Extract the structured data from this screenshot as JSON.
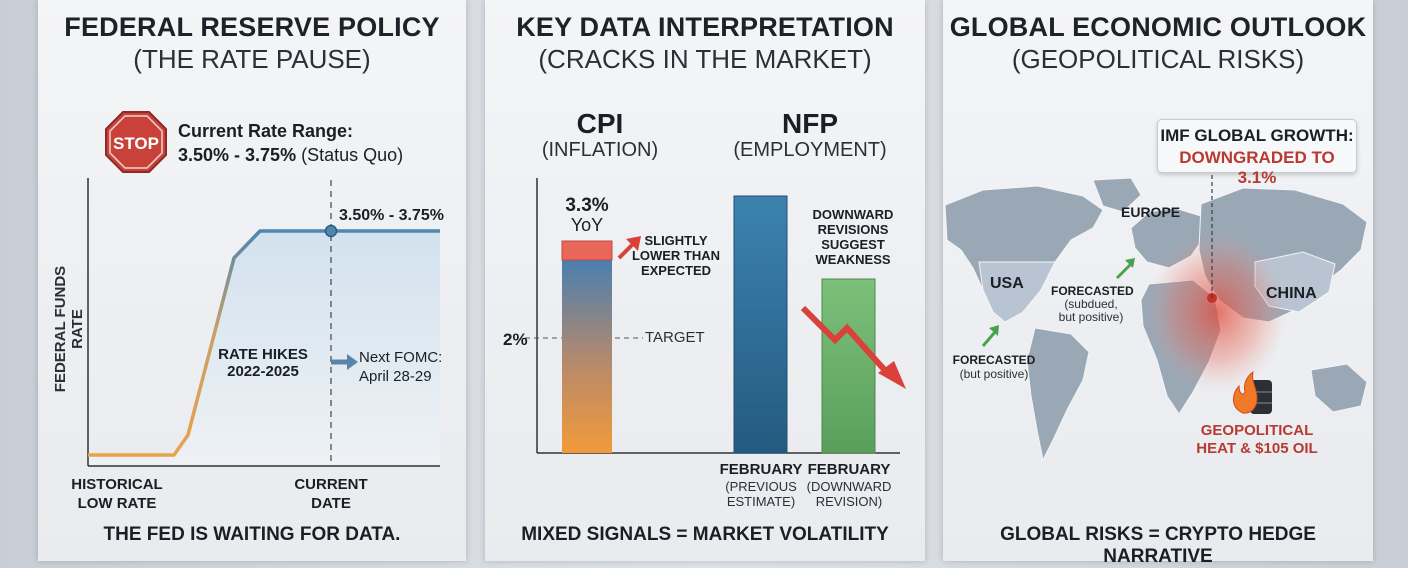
{
  "panel1": {
    "title": "FEDERAL RESERVE POLICY",
    "subtitle": "(THE RATE PAUSE)",
    "stop_label": "STOP",
    "rate_range_heading": "Current Rate Range:",
    "rate_range_value": "3.50% - 3.75%",
    "rate_range_note": "(Status Quo)",
    "footer": "THE FED IS WAITING FOR DATA."
  },
  "panel2": {
    "title": "KEY DATA INTERPRETATION",
    "subtitle": "(CRACKS IN THE MARKET)",
    "footer": "MIXED SIGNALS = MARKET VOLATILITY"
  },
  "panel3": {
    "title": "GLOBAL ECONOMIC OUTLOOK",
    "subtitle": "(GEOPOLITICAL RISKS)",
    "imf_heading": "IMF GLOBAL GROWTH:",
    "imf_value": "DOWNGRADED TO 3.1%",
    "label_europe": "EUROPE",
    "label_usa": "USA",
    "label_china": "CHINA",
    "label_forecast_main": "FORECASTED",
    "label_forecast_sub": "(subdued, but positive)",
    "label_forecast2_main": "FORECASTED",
    "label_forecast2_sub": "(but positive)",
    "label_geo": "GEOPOLITICAL HEAT & $105 OIL",
    "footer": "GLOBAL RISKS = CRYPTO HEDGE NARRATIVE"
  },
  "colors": {
    "rate_line": "#4f86ae",
    "hike_line": "#e8a24a",
    "stop_red": "#c9423a",
    "cpi_top": "#e8675a",
    "cpi_bar_top": "#4a7fb0",
    "cpi_bar_bottom": "#f29a3a",
    "nfp_prev": "#2f6f9a",
    "nfp_rev": "#6bb06a",
    "down_arrow": "#d9413a"
  },
  "chart_data": [
    {
      "type": "line",
      "title": "Federal Funds Rate",
      "ylabel": "FEDERAL FUNDS RATE",
      "x_labels": [
        "HISTORICAL LOW RATE",
        "CURRENT DATE"
      ],
      "series": [
        {
          "name": "Fed Funds Rate",
          "points": [
            "low",
            "low",
            "hikes",
            "3.50% - 3.75%",
            "3.50% - 3.75%"
          ]
        }
      ],
      "annotations": {
        "peak_label": "3.50% - 3.75%",
        "hikes_label": "RATE HIKES 2022-2025",
        "next_fomc": "Next FOMC: April 28-29"
      }
    },
    {
      "type": "bar",
      "title": "CPI (INFLATION)",
      "subtitle_cpi_main": "CPI",
      "subtitle_cpi_sub": "(INFLATION)",
      "values": [
        3.3
      ],
      "value_label": "3.3%",
      "value_sublabel": "YoY",
      "target_value": 2,
      "target_label_left": "2%",
      "target_label_right": "TARGET",
      "note": "SLIGHTLY LOWER THAN EXPECTED",
      "ylim": [
        0,
        4
      ]
    },
    {
      "type": "bar",
      "title": "NFP (EMPLOYMENT)",
      "subtitle_nfp_main": "NFP",
      "subtitle_nfp_sub": "(EMPLOYMENT)",
      "categories": [
        "FEBRUARY (PREVIOUS ESTIMATE)",
        "FEBRUARY (DOWNWARD REVISION)"
      ],
      "cat1_main": "FEBRUARY",
      "cat1_sub": "(PREVIOUS ESTIMATE)",
      "cat2_main": "FEBRUARY",
      "cat2_sub": "(DOWNWARD REVISION)",
      "relative_values": [
        100,
        67
      ],
      "note": "DOWNWARD REVISIONS SUGGEST WEAKNESS"
    }
  ]
}
